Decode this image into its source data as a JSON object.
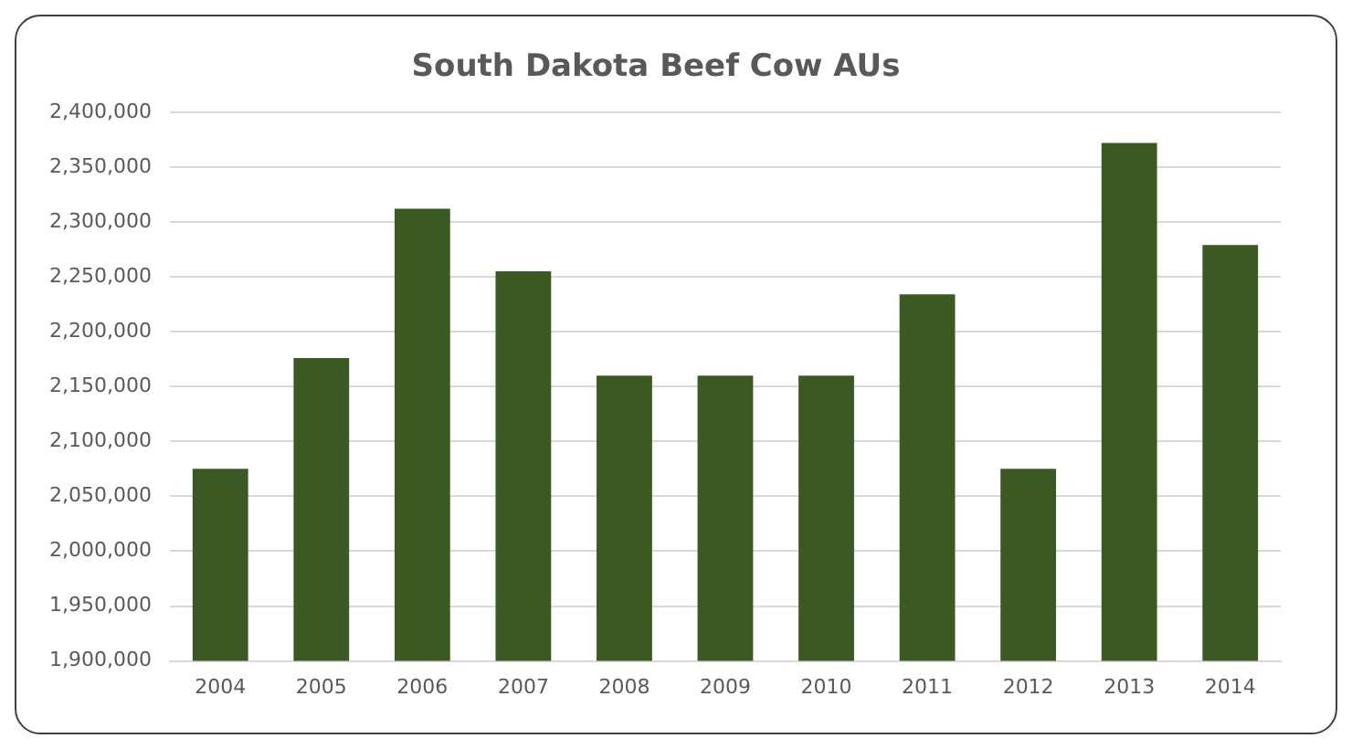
{
  "chart_data": {
    "type": "bar",
    "title": "South Dakota Beef Cow AUs",
    "categories": [
      "2004",
      "2005",
      "2006",
      "2007",
      "2008",
      "2009",
      "2010",
      "2011",
      "2012",
      "2013",
      "2014"
    ],
    "values": [
      2075000,
      2176000,
      2312000,
      2255000,
      2160000,
      2160000,
      2160000,
      2234000,
      2075000,
      2372000,
      2279000
    ],
    "color": "#3b5a23",
    "ylim": [
      1900000,
      2400000
    ],
    "yticks": [
      {
        "value": 1900000,
        "label": "1,900,000"
      },
      {
        "value": 1950000,
        "label": "1,950,000"
      },
      {
        "value": 2000000,
        "label": "2,000,000"
      },
      {
        "value": 2050000,
        "label": "2,050,000"
      },
      {
        "value": 2100000,
        "label": "2,100,000"
      },
      {
        "value": 2150000,
        "label": "2,150,000"
      },
      {
        "value": 2200000,
        "label": "2,200,000"
      },
      {
        "value": 2250000,
        "label": "2,250,000"
      },
      {
        "value": 2300000,
        "label": "2,300,000"
      },
      {
        "value": 2350000,
        "label": "2,350,000"
      },
      {
        "value": 2400000,
        "label": "2,400,000"
      }
    ],
    "grid": "y"
  }
}
